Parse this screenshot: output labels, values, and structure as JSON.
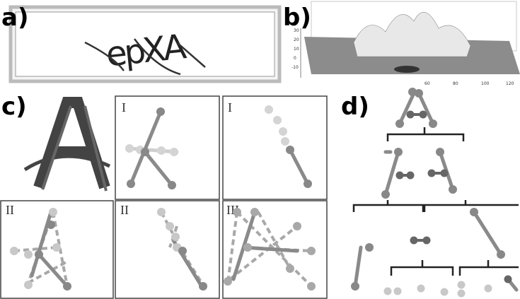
{
  "panel_a": {
    "label": "a)",
    "captcha": "epXA"
  },
  "panel_b": {
    "label": "b)",
    "zticks": [
      "30",
      "20",
      "10",
      "0",
      "-10"
    ],
    "xticks": [
      "60",
      "80",
      "100",
      "120"
    ]
  },
  "panel_c": {
    "label": "c)",
    "boxes": [
      "I",
      "I",
      "II",
      "II",
      "III"
    ]
  },
  "panel_d": {
    "label": "d)"
  }
}
